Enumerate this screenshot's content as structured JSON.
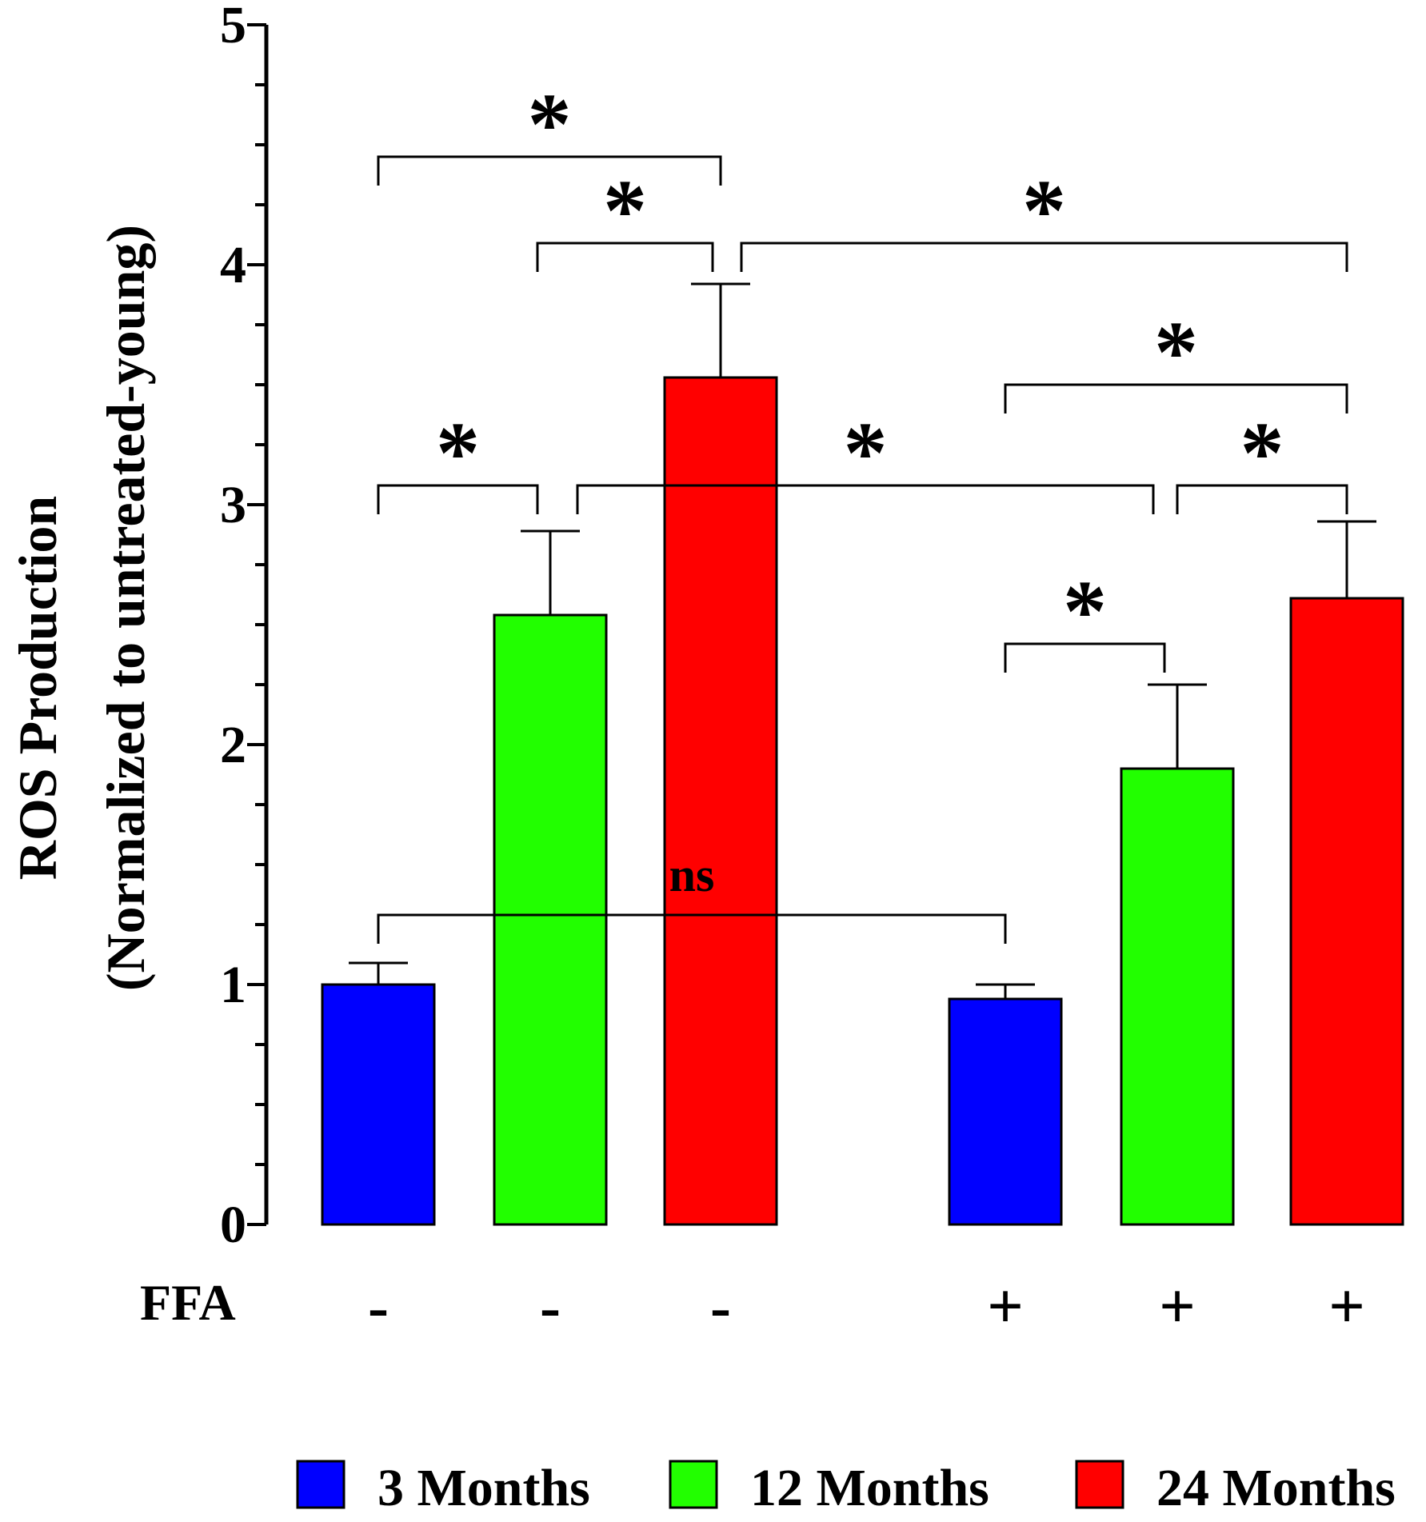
{
  "chart_data": {
    "type": "bar",
    "ylabel_line1": "ROS Production",
    "ylabel_line2": "(Normalized to untreated-young)",
    "ylim": [
      0,
      5
    ],
    "yticks": [
      "0",
      "1",
      "2",
      "3",
      "4",
      "5"
    ],
    "minor_tick_step": 0.25,
    "treatment_label": "FFA",
    "bars": [
      {
        "group": "3 Months",
        "ffa": "-",
        "value": 1.0,
        "error": 0.09
      },
      {
        "group": "12 Months",
        "ffa": "-",
        "value": 2.54,
        "error": 0.35
      },
      {
        "group": "24 Months",
        "ffa": "-",
        "value": 3.53,
        "error": 0.39
      },
      {
        "group": "3 Months",
        "ffa": "+",
        "value": 0.94,
        "error": 0.06
      },
      {
        "group": "12 Months",
        "ffa": "+",
        "value": 1.9,
        "error": 0.35
      },
      {
        "group": "24 Months",
        "ffa": "+",
        "value": 2.61,
        "error": 0.32
      }
    ],
    "significance": [
      {
        "from": 0,
        "to": 2,
        "y": 4.45,
        "label": "*"
      },
      {
        "from": 1,
        "to": 2,
        "y": 4.09,
        "label": "*"
      },
      {
        "from": 2,
        "to": 5,
        "y": 4.09,
        "label": "*"
      },
      {
        "from": 3,
        "to": 5,
        "y": 3.5,
        "label": "*"
      },
      {
        "from": 0,
        "to": 1,
        "y": 3.08,
        "label": "*"
      },
      {
        "from": 1,
        "to": 4,
        "y": 3.08,
        "label": "*"
      },
      {
        "from": 4,
        "to": 5,
        "y": 3.08,
        "label": "*"
      },
      {
        "from": 3,
        "to": 4,
        "y": 2.42,
        "label": "*"
      },
      {
        "from": 0,
        "to": 3,
        "y": 1.29,
        "label": "ns"
      }
    ],
    "legend": [
      {
        "label": "3 Months",
        "color": "#0000ff"
      },
      {
        "label": "12 Months",
        "color": "#22ff00"
      },
      {
        "label": "24 Months",
        "color": "#ff0000"
      }
    ],
    "legend_position": "bottom"
  }
}
